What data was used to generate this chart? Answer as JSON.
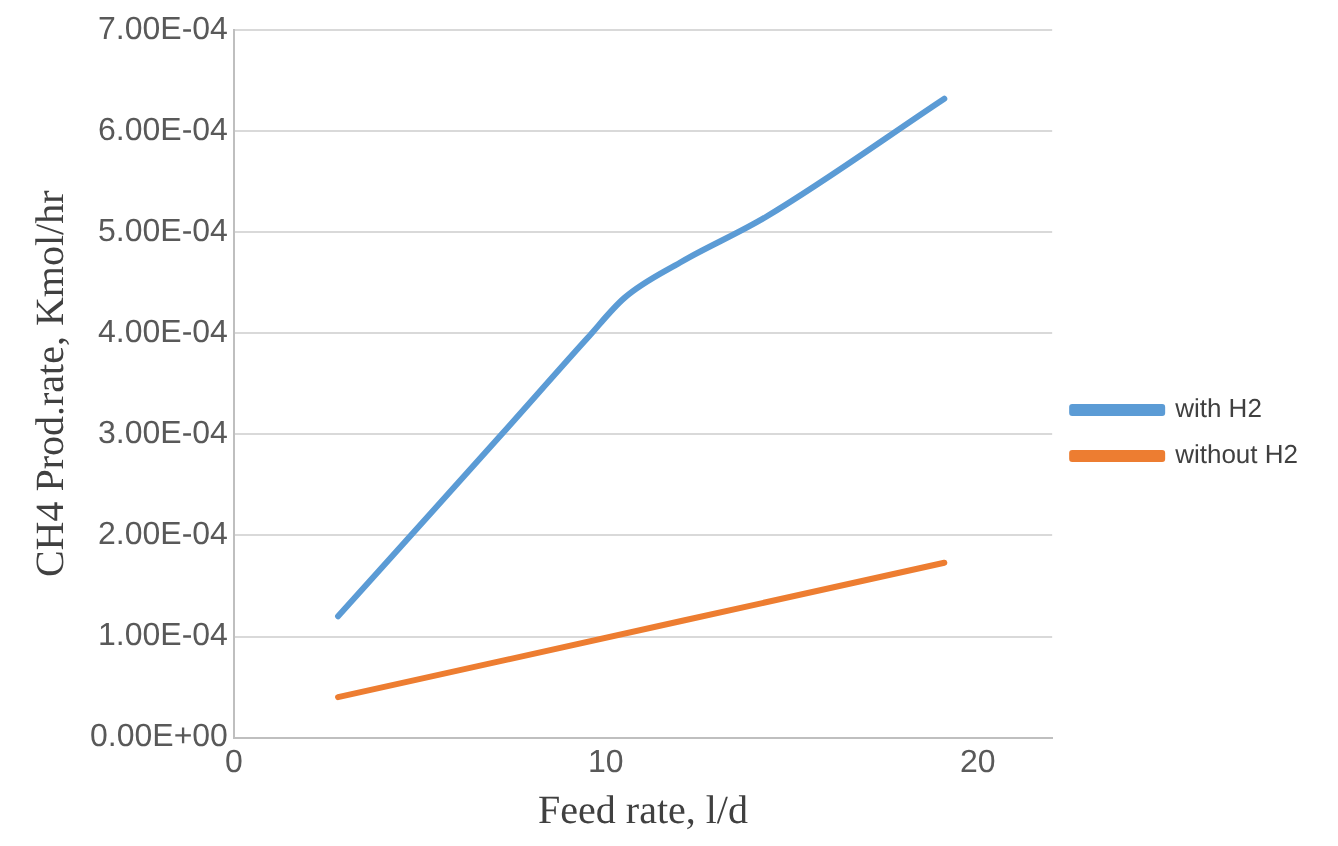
{
  "chart_data": {
    "type": "line",
    "xlabel": "Feed rate, l/d",
    "ylabel": "CH4 Prod.rate, Kmol/hr",
    "series": [
      {
        "name": "with H2",
        "color": "#5b9bd5",
        "x": [
          2.8,
          7.2,
          9.5,
          10.5,
          12,
          14.3,
          19.1
        ],
        "values": [
          0.00012,
          0.0003,
          0.000395,
          0.000435,
          0.00047,
          0.000515,
          0.000632
        ]
      },
      {
        "name": "without H2",
        "color": "#ed7d31",
        "x": [
          2.8,
          19.1
        ],
        "values": [
          4e-05,
          0.000173
        ]
      }
    ],
    "xlim": [
      0,
      22
    ],
    "xticks": [
      0,
      10,
      20
    ],
    "ylim": [
      0,
      0.0007
    ],
    "yticks": [
      {
        "value": 0,
        "label": "0.00E+00"
      },
      {
        "value": 0.0001,
        "label": "1.00E-04"
      },
      {
        "value": 0.0002,
        "label": "2.00E-04"
      },
      {
        "value": 0.0003,
        "label": "3.00E-04"
      },
      {
        "value": 0.0004,
        "label": "4.00E-04"
      },
      {
        "value": 0.0005,
        "label": "5.00E-04"
      },
      {
        "value": 0.0006,
        "label": "6.00E-04"
      },
      {
        "value": 0.0007,
        "label": "7.00E-04"
      }
    ],
    "grid": "y",
    "legend": "right",
    "marker": "none"
  }
}
